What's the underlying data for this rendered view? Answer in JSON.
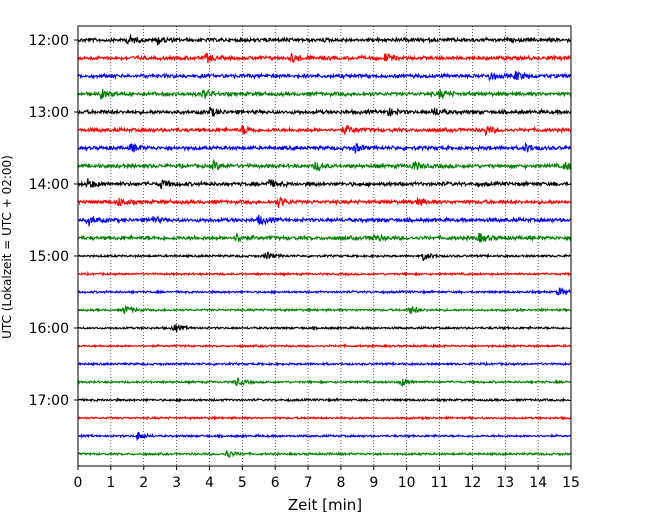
{
  "chart_data": {
    "type": "line",
    "title": "",
    "xlabel": "Zeit  [min]",
    "ylabel": "UTC (Lokalzeit = UTC + 02:00)",
    "xlim": [
      0,
      15
    ],
    "x_ticks": [
      "0",
      "1",
      "2",
      "3",
      "4",
      "5",
      "6",
      "7",
      "8",
      "9",
      "10",
      "11",
      "12",
      "13",
      "14",
      "15"
    ],
    "y_ticks": [
      "12:00",
      "13:00",
      "14:00",
      "15:00",
      "16:00",
      "17:00"
    ],
    "grid": "vertical dotted at each minute",
    "trace_colors": [
      "#000000",
      "#ff0000",
      "#0000ff",
      "#008000"
    ],
    "trace_order_color_cycle": [
      "black",
      "red",
      "blue",
      "green"
    ],
    "traces": [
      {
        "start": "12:00",
        "amplitude": "moderate",
        "events_min": [
          1.5,
          2.4
        ]
      },
      {
        "start": "12:15",
        "amplitude": "moderate",
        "events_min": [
          3.9,
          6.5,
          9.3
        ]
      },
      {
        "start": "12:30",
        "amplitude": "moderate",
        "events_min": [
          12.5,
          13.3
        ]
      },
      {
        "start": "12:45",
        "amplitude": "moderate",
        "events_min": [
          0.7,
          3.8,
          11.0
        ]
      },
      {
        "start": "13:00",
        "amplitude": "moderate",
        "events_min": [
          4.0,
          9.4,
          10.8
        ]
      },
      {
        "start": "13:15",
        "amplitude": "moderate",
        "events_min": [
          5.0,
          8.1,
          12.4
        ]
      },
      {
        "start": "13:30",
        "amplitude": "moderate",
        "events_min": [
          1.6,
          8.4,
          13.6
        ]
      },
      {
        "start": "13:45",
        "amplitude": "moderate",
        "events_min": [
          4.1,
          7.2,
          10.2,
          14.8
        ]
      },
      {
        "start": "14:00",
        "amplitude": "moderate",
        "events_min": [
          0.3,
          2.5,
          5.8
        ]
      },
      {
        "start": "14:15",
        "amplitude": "moderate",
        "events_min": [
          1.2,
          6.1,
          10.3
        ]
      },
      {
        "start": "14:30",
        "amplitude": "moderate",
        "events_min": [
          0.3,
          2.2,
          5.5
        ]
      },
      {
        "start": "14:45",
        "amplitude": "moderate",
        "events_min": [
          4.8,
          8.9,
          12.2
        ]
      },
      {
        "start": "15:00",
        "amplitude": "low",
        "events_min": [
          5.7,
          10.5
        ]
      },
      {
        "start": "15:15",
        "amplitude": "low",
        "events_min": []
      },
      {
        "start": "15:30",
        "amplitude": "low",
        "events_min": [
          14.6
        ]
      },
      {
        "start": "15:45",
        "amplitude": "low",
        "events_min": [
          1.4,
          10.1
        ]
      },
      {
        "start": "16:00",
        "amplitude": "low",
        "events_min": [
          2.9
        ]
      },
      {
        "start": "16:15",
        "amplitude": "low",
        "events_min": []
      },
      {
        "start": "16:30",
        "amplitude": "low",
        "events_min": []
      },
      {
        "start": "16:45",
        "amplitude": "low",
        "events_min": [
          4.8,
          9.8
        ]
      },
      {
        "start": "17:00",
        "amplitude": "low",
        "events_min": []
      },
      {
        "start": "17:15",
        "amplitude": "low",
        "events_min": []
      },
      {
        "start": "17:30",
        "amplitude": "low",
        "events_min": [
          1.8
        ]
      },
      {
        "start": "17:45",
        "amplitude": "low",
        "events_min": [
          4.5
        ]
      }
    ]
  }
}
